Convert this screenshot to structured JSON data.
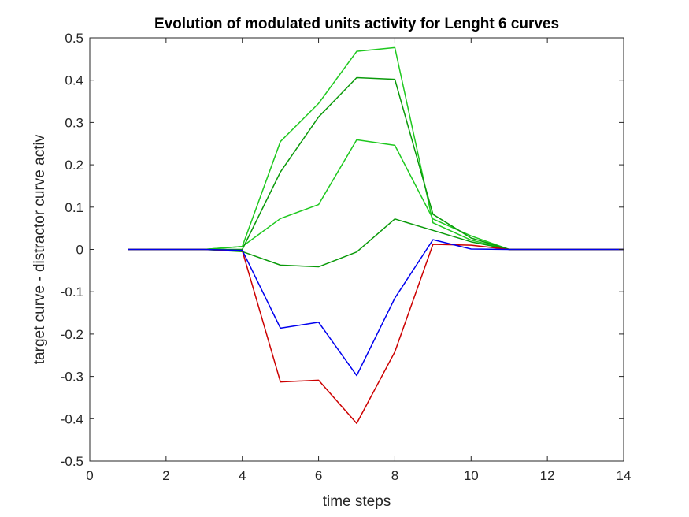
{
  "chart_data": {
    "type": "line",
    "title": "Evolution of modulated units activity for Lenght 6 curves",
    "xlabel": "time steps",
    "ylabel": "target curve - distractor curve activ",
    "xlim": [
      0,
      14
    ],
    "ylim": [
      -0.5,
      0.5
    ],
    "xticks": [
      "0",
      "2",
      "4",
      "6",
      "8",
      "10",
      "12",
      "14"
    ],
    "yticks": [
      "-0.5",
      "-0.4",
      "-0.3",
      "-0.2",
      "-0.1",
      "0",
      "0.1",
      "0.2",
      "0.3",
      "0.4",
      "0.5"
    ],
    "grid": false,
    "x": [
      1,
      2,
      3,
      4,
      5,
      6,
      7,
      8,
      9,
      10,
      11,
      12,
      13,
      14
    ],
    "series": [
      {
        "color": "#1ec81e",
        "values": [
          0,
          0,
          0,
          0.007,
          0.255,
          0.345,
          0.468,
          0.477,
          0.063,
          0.022,
          0,
          0,
          0,
          0
        ]
      },
      {
        "color": "#1ec81e",
        "values": [
          0,
          0,
          0,
          0.007,
          0.073,
          0.106,
          0.259,
          0.246,
          0.072,
          0.032,
          0,
          0,
          0,
          0
        ]
      },
      {
        "color": "#0a9a0a",
        "values": [
          0,
          0,
          0,
          0,
          0.183,
          0.313,
          0.406,
          0.402,
          0.083,
          0.027,
          0,
          0,
          0,
          0
        ]
      },
      {
        "color": "#0a9a0a",
        "values": [
          0,
          0,
          0,
          -0.005,
          -0.037,
          -0.041,
          -0.006,
          0.072,
          0.045,
          0.018,
          0,
          0,
          0,
          0
        ]
      },
      {
        "color": "#cc0000",
        "values": [
          0,
          0,
          0,
          -0.003,
          -0.313,
          -0.309,
          -0.411,
          -0.242,
          0.012,
          0.01,
          0,
          0,
          0,
          0
        ]
      },
      {
        "color": "#0000ee",
        "values": [
          0,
          0,
          0,
          -0.002,
          -0.186,
          -0.172,
          -0.298,
          -0.115,
          0.023,
          0.001,
          0,
          0,
          0,
          0
        ]
      }
    ]
  }
}
